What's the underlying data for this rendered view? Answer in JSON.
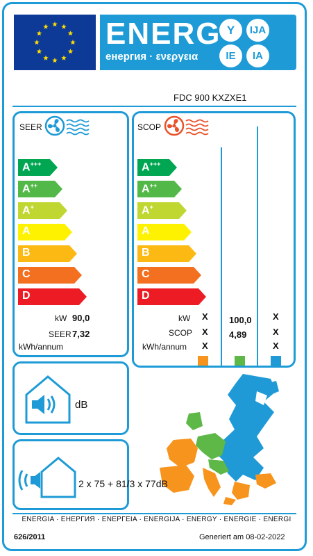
{
  "header": {
    "energy_word": "ENERG",
    "energy_subtitle": "енергия · ενεργεια",
    "lang_codes": [
      "Y",
      "IJA",
      "IE",
      "IA"
    ]
  },
  "model": "FDC 900 KXZXE1",
  "cooling": {
    "title": "SEER",
    "classes": [
      {
        "letter": "A",
        "sup": "+++",
        "color": "#00a651"
      },
      {
        "letter": "A",
        "sup": "++",
        "color": "#52b848"
      },
      {
        "letter": "A",
        "sup": "+",
        "color": "#bfd730"
      },
      {
        "letter": "A",
        "sup": "",
        "color": "#fff200"
      },
      {
        "letter": "B",
        "sup": "",
        "color": "#fdb913"
      },
      {
        "letter": "C",
        "sup": "",
        "color": "#f37021"
      },
      {
        "letter": "D",
        "sup": "",
        "color": "#ed1c24"
      }
    ],
    "kw_label": "kW",
    "kw_value": "90,0",
    "seer_label": "SEER",
    "seer_value": "7,32",
    "annual_label": "kWh/annum"
  },
  "heating": {
    "title": "SCOP",
    "classes": [
      {
        "letter": "A",
        "sup": "+++",
        "color": "#00a651"
      },
      {
        "letter": "A",
        "sup": "++",
        "color": "#52b848"
      },
      {
        "letter": "A",
        "sup": "+",
        "color": "#bfd730"
      },
      {
        "letter": "A",
        "sup": "",
        "color": "#fff200"
      },
      {
        "letter": "B",
        "sup": "",
        "color": "#fdb913"
      },
      {
        "letter": "C",
        "sup": "",
        "color": "#f37021"
      },
      {
        "letter": "D",
        "sup": "",
        "color": "#ed1c24"
      }
    ],
    "kw_label": "kW",
    "scop_label": "SCOP",
    "annual_label": "kWh/annum",
    "col1": {
      "kw": "X",
      "scop": "X",
      "annual": "X"
    },
    "col2": {
      "kw": "100,0",
      "scop": "4,89",
      "annual": ""
    },
    "col3": {
      "kw": "X",
      "scop": "X",
      "annual": "X"
    },
    "zone_colors": [
      "#f7941d",
      "#5db847",
      "#1f9ad6"
    ]
  },
  "noise": {
    "indoor_unit": "dB",
    "outdoor_value": "2 x 75 + 81/3 x 77dB"
  },
  "footer": {
    "languages": "ENERGIA · ЕНЕРГИЯ · ΕΝΕΡΓΕΙΑ · ENERGIJA · ENERGY · ENERGIE · ENERGI",
    "regulation": "626/2011",
    "generated": "Generiert am 08-02-2022"
  }
}
